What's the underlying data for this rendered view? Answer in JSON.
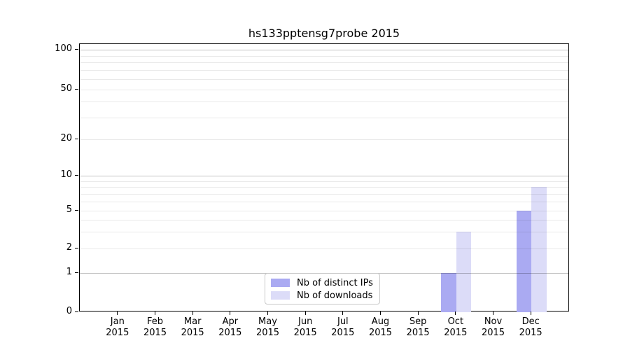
{
  "title": "hs133pptensg7probe 2015",
  "chart_data": {
    "type": "bar",
    "categories": [
      "Jan 2015",
      "Feb 2015",
      "Mar 2015",
      "Apr 2015",
      "May 2015",
      "Jun 2015",
      "Jul 2015",
      "Aug 2015",
      "Sep 2015",
      "Oct 2015",
      "Nov 2015",
      "Dec 2015"
    ],
    "series": [
      {
        "name": "Nb of distinct IPs",
        "color": "#aaaaf2",
        "values": [
          0,
          0,
          0,
          0,
          0,
          0,
          0,
          0,
          0,
          1,
          0,
          5
        ]
      },
      {
        "name": "Nb of downloads",
        "color": "#dcdcf8",
        "values": [
          0,
          0,
          0,
          0,
          0,
          0,
          0,
          0,
          0,
          3,
          0,
          8
        ]
      }
    ],
    "yscale": "symlog",
    "yticks": [
      0,
      1,
      2,
      5,
      10,
      20,
      50,
      100
    ],
    "y_minor_gridlines": [
      3,
      4,
      6,
      7,
      8,
      9,
      30,
      40,
      60,
      70,
      80,
      90
    ],
    "y_major_gridlines": [
      1,
      10,
      100
    ],
    "ylim": [
      0,
      100
    ],
    "grid": "on",
    "legend_position": "bottom-center",
    "xlabel": "",
    "ylabel": ""
  }
}
